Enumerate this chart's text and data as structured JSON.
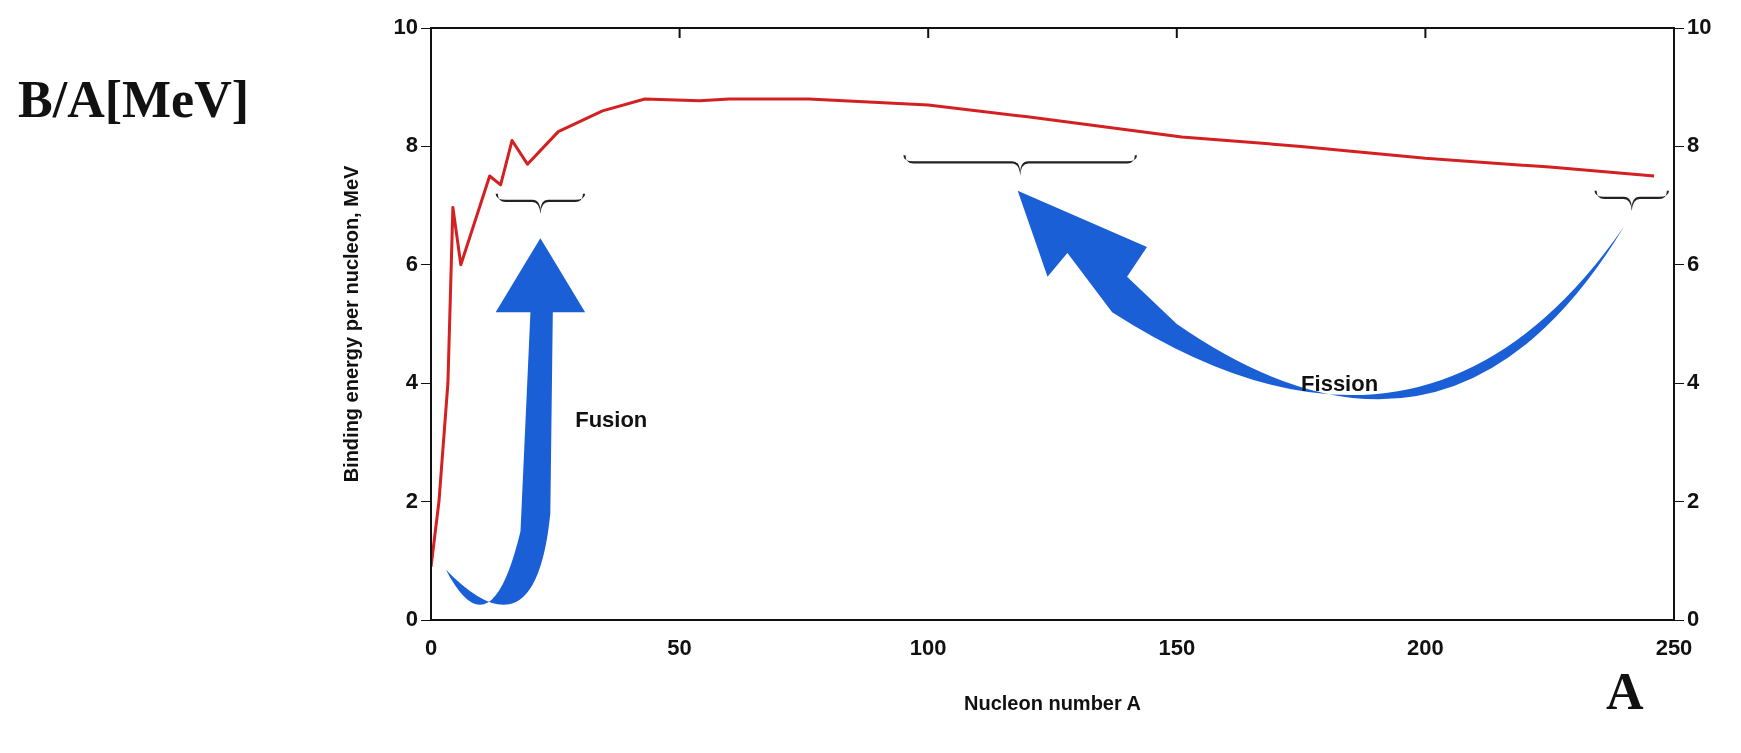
{
  "chart_data": {
    "type": "line",
    "xlabel": "Nucleon number A",
    "ylabel": "Binding energy per nucleon, MeV",
    "annotations": [
      "B/A[MeV]",
      "A",
      "Fusion",
      "Fission"
    ],
    "series": [
      {
        "color": "#d42020",
        "x": [
          0,
          1.6,
          3.4,
          4.4,
          6,
          11.8,
          14,
          16.3,
          19.4,
          25.6,
          34.5,
          43,
          54,
          60,
          76,
          100,
          120,
          151,
          175,
          200,
          225,
          246
        ],
        "values": [
          0.9,
          2,
          4,
          6.97,
          6,
          7.5,
          7.35,
          8.1,
          7.7,
          8.25,
          8.6,
          8.8,
          8.77,
          8.8,
          8.8,
          8.7,
          8.5,
          8.16,
          8,
          7.8,
          7.65,
          7.5
        ]
      }
    ],
    "xlim": [
      0,
      250
    ],
    "xticks": [
      0,
      50,
      100,
      150,
      200,
      250
    ],
    "ylim": [
      0,
      10
    ],
    "yticks": [
      0,
      2,
      4,
      6,
      8,
      10
    ],
    "y2lim": [
      0,
      10
    ],
    "y2ticks": [
      0,
      2,
      4,
      6,
      8,
      10
    ],
    "grid": false,
    "legend": false,
    "marker": "none",
    "line_style": "solid"
  }
}
